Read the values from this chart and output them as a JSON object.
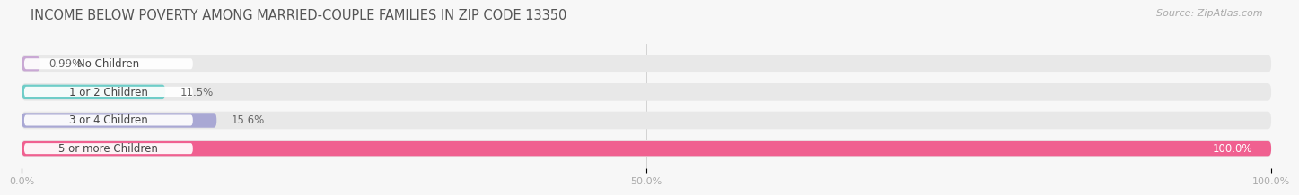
{
  "title": "INCOME BELOW POVERTY AMONG MARRIED-COUPLE FAMILIES IN ZIP CODE 13350",
  "source": "Source: ZipAtlas.com",
  "categories": [
    "No Children",
    "1 or 2 Children",
    "3 or 4 Children",
    "5 or more Children"
  ],
  "values": [
    0.99,
    11.5,
    15.6,
    100.0
  ],
  "bar_colors": [
    "#c9a8d4",
    "#6ecdc8",
    "#a9a8d4",
    "#f06090"
  ],
  "value_labels": [
    "0.99%",
    "11.5%",
    "15.6%",
    "100.0%"
  ],
  "xlim": [
    0,
    100
  ],
  "xticks": [
    0.0,
    50.0,
    100.0
  ],
  "xticklabels": [
    "0.0%",
    "50.0%",
    "100.0%"
  ],
  "background_color": "#f7f7f7",
  "bar_bg_color": "#e8e8e8",
  "title_fontsize": 10.5,
  "source_fontsize": 8,
  "bar_fontsize": 8.5,
  "tick_fontsize": 8,
  "figsize": [
    14.06,
    2.32
  ]
}
